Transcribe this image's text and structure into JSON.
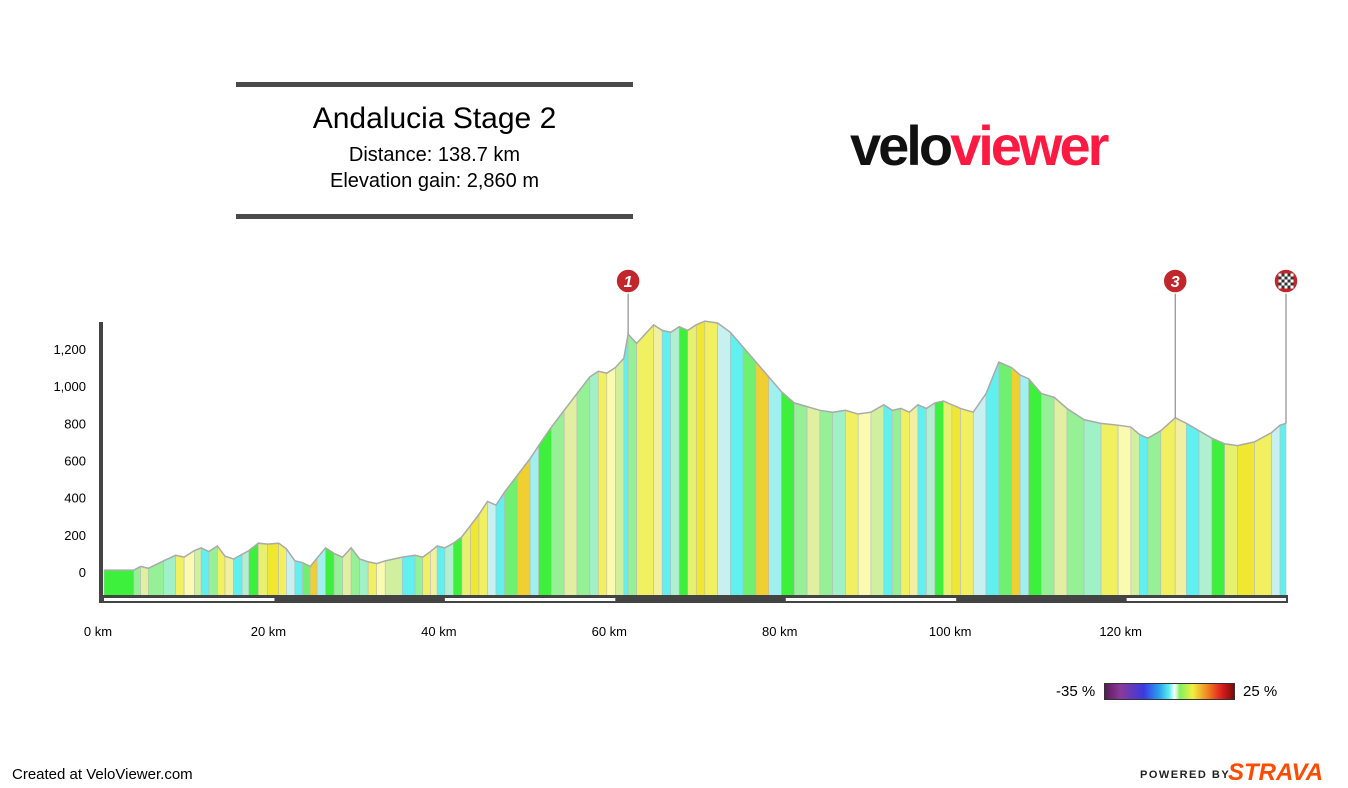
{
  "header": {
    "title": "Andalucia Stage 2",
    "distance": "Distance: 138.7 km",
    "elevation_gain": "Elevation gain: 2,860 m"
  },
  "logo": {
    "part1": "velo",
    "part2": "viewer",
    "colors": {
      "part1": "#111111",
      "part2": "#fc1a42"
    }
  },
  "legend": {
    "min_label": "-35 %",
    "max_label": "25 %"
  },
  "footer": {
    "created": "Created at VeloViewer.com",
    "powered_by": "POWERED BY",
    "brand": "STRAVA"
  },
  "chart_data": {
    "type": "area",
    "xlabel": "",
    "ylabel": "",
    "xlim": [
      0,
      138.7
    ],
    "ylim": [
      -120,
      1350
    ],
    "x_tick_labels": [
      "0 km",
      "20 km",
      "40 km",
      "60 km",
      "80 km",
      "100 km",
      "120 km"
    ],
    "x_ticks": [
      0,
      20,
      40,
      60,
      80,
      100,
      120
    ],
    "y_tick_labels": [
      "0",
      "200",
      "400",
      "600",
      "800",
      "1,000",
      "1,200"
    ],
    "y_ticks": [
      0,
      200,
      400,
      600,
      800,
      1000,
      1200
    ],
    "markers": [
      {
        "label": "1",
        "km": 61.5,
        "elevation": 1280
      },
      {
        "label": "3",
        "km": 125.7,
        "elevation": 830
      },
      {
        "label": "finish",
        "km": 138.7,
        "elevation": 800
      }
    ],
    "profile": [
      [
        0,
        10
      ],
      [
        3.5,
        10
      ],
      [
        4.3,
        30
      ],
      [
        5.2,
        20
      ],
      [
        7,
        60
      ],
      [
        8.4,
        90
      ],
      [
        9.4,
        80
      ],
      [
        10.6,
        115
      ],
      [
        11.4,
        130
      ],
      [
        12.3,
        110
      ],
      [
        13.3,
        140
      ],
      [
        14.2,
        85
      ],
      [
        15.2,
        70
      ],
      [
        16.2,
        95
      ],
      [
        17,
        115
      ],
      [
        18.1,
        155
      ],
      [
        19.2,
        150
      ],
      [
        20.5,
        155
      ],
      [
        21.4,
        125
      ],
      [
        22.4,
        60
      ],
      [
        23.3,
        50
      ],
      [
        24.2,
        30
      ],
      [
        25,
        75
      ],
      [
        26,
        130
      ],
      [
        27,
        100
      ],
      [
        28,
        80
      ],
      [
        29,
        130
      ],
      [
        30,
        70
      ],
      [
        31,
        55
      ],
      [
        32,
        45
      ],
      [
        33,
        60
      ],
      [
        35,
        80
      ],
      [
        36.5,
        90
      ],
      [
        37.4,
        80
      ],
      [
        38.3,
        110
      ],
      [
        39.1,
        140
      ],
      [
        40,
        130
      ],
      [
        41,
        155
      ],
      [
        42,
        190
      ],
      [
        43,
        250
      ],
      [
        44,
        310
      ],
      [
        45,
        380
      ],
      [
        46,
        360
      ],
      [
        47,
        430
      ],
      [
        48.5,
        520
      ],
      [
        50,
        610
      ],
      [
        51,
        680
      ],
      [
        52.5,
        780
      ],
      [
        54,
        870
      ],
      [
        55.5,
        960
      ],
      [
        57,
        1050
      ],
      [
        58,
        1080
      ],
      [
        59,
        1070
      ],
      [
        60,
        1100
      ],
      [
        61,
        1150
      ],
      [
        61.5,
        1280
      ],
      [
        62.5,
        1230
      ],
      [
        64.5,
        1330
      ],
      [
        65.5,
        1300
      ],
      [
        66.5,
        1290
      ],
      [
        67.5,
        1320
      ],
      [
        68.5,
        1300
      ],
      [
        69.5,
        1330
      ],
      [
        70.5,
        1350
      ],
      [
        72,
        1340
      ],
      [
        73.5,
        1290
      ],
      [
        75,
        1210
      ],
      [
        76.5,
        1130
      ],
      [
        78,
        1050
      ],
      [
        79.5,
        970
      ],
      [
        81,
        910
      ],
      [
        82.5,
        890
      ],
      [
        84,
        870
      ],
      [
        85.5,
        860
      ],
      [
        87,
        870
      ],
      [
        88.5,
        850
      ],
      [
        90,
        860
      ],
      [
        91.5,
        900
      ],
      [
        92.5,
        870
      ],
      [
        93.5,
        880
      ],
      [
        94.5,
        860
      ],
      [
        95.5,
        900
      ],
      [
        96.5,
        880
      ],
      [
        97.5,
        910
      ],
      [
        98.5,
        920
      ],
      [
        99.5,
        900
      ],
      [
        100.5,
        880
      ],
      [
        102,
        860
      ],
      [
        103.5,
        960
      ],
      [
        105,
        1130
      ],
      [
        106.5,
        1100
      ],
      [
        107.5,
        1060
      ],
      [
        108.5,
        1040
      ],
      [
        110,
        960
      ],
      [
        111.5,
        940
      ],
      [
        113,
        880
      ],
      [
        115,
        820
      ],
      [
        117,
        800
      ],
      [
        119,
        790
      ],
      [
        120.5,
        780
      ],
      [
        121.5,
        740
      ],
      [
        122.5,
        720
      ],
      [
        124,
        760
      ],
      [
        125.7,
        830
      ],
      [
        127,
        800
      ],
      [
        128.5,
        760
      ],
      [
        130,
        720
      ],
      [
        131.5,
        690
      ],
      [
        133,
        680
      ],
      [
        135,
        700
      ],
      [
        137,
        750
      ],
      [
        138,
        790
      ],
      [
        138.7,
        800
      ]
    ],
    "segment_colors": [
      "#3cf03c",
      "#96f096",
      "#e0f0a0",
      "#96f096",
      "#a0f0c8",
      "#f0f060",
      "#fafab0",
      "#d0f0a0",
      "#60f0f0",
      "#96f096",
      "#f0f060",
      "#f0f0a0",
      "#60f0f0",
      "#b0f0d0",
      "#3cf03c",
      "#e8f070",
      "#f0e830",
      "#f0f060",
      "#c8f0f0",
      "#60f0f0",
      "#70f070",
      "#f0d030",
      "#a0f0f0"
    ]
  }
}
